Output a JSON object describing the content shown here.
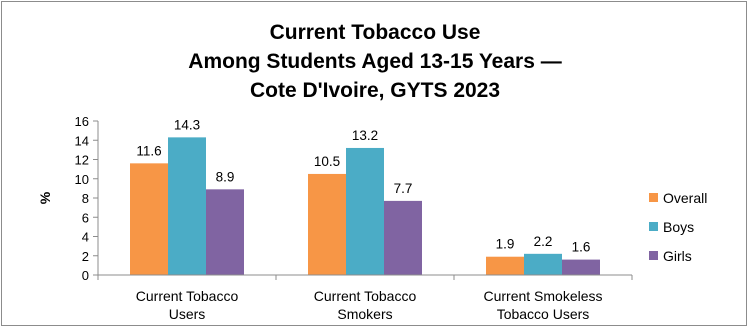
{
  "chart_data": {
    "type": "bar",
    "title_lines": [
      "Current Tobacco Use",
      "Among Students Aged 13-15 Years —",
      "Cote D'Ivoire, GYTS 2023"
    ],
    "ylabel": "%",
    "xlabel": "",
    "ylim": [
      0,
      16
    ],
    "yticks": [
      0,
      2,
      4,
      6,
      8,
      10,
      12,
      14,
      16
    ],
    "categories": [
      [
        "Current Tobacco",
        "Users"
      ],
      [
        "Current Tobacco",
        "Smokers"
      ],
      [
        "Current Smokeless",
        "Tobacco Users"
      ]
    ],
    "series": [
      {
        "name": "Overall",
        "color": "#F79646",
        "values": [
          11.6,
          10.5,
          1.9
        ],
        "labels": [
          "11.6",
          "10.5",
          "1.9"
        ]
      },
      {
        "name": "Boys",
        "color": "#4BACC6",
        "values": [
          14.3,
          13.2,
          2.2
        ],
        "labels": [
          "14.3",
          "13.2",
          "2.2"
        ]
      },
      {
        "name": "Girls",
        "color": "#8064A2",
        "values": [
          8.9,
          7.7,
          1.6
        ],
        "labels": [
          "8.9",
          "7.7",
          "1.6"
        ]
      }
    ],
    "legend_position": "right",
    "grid": false
  }
}
